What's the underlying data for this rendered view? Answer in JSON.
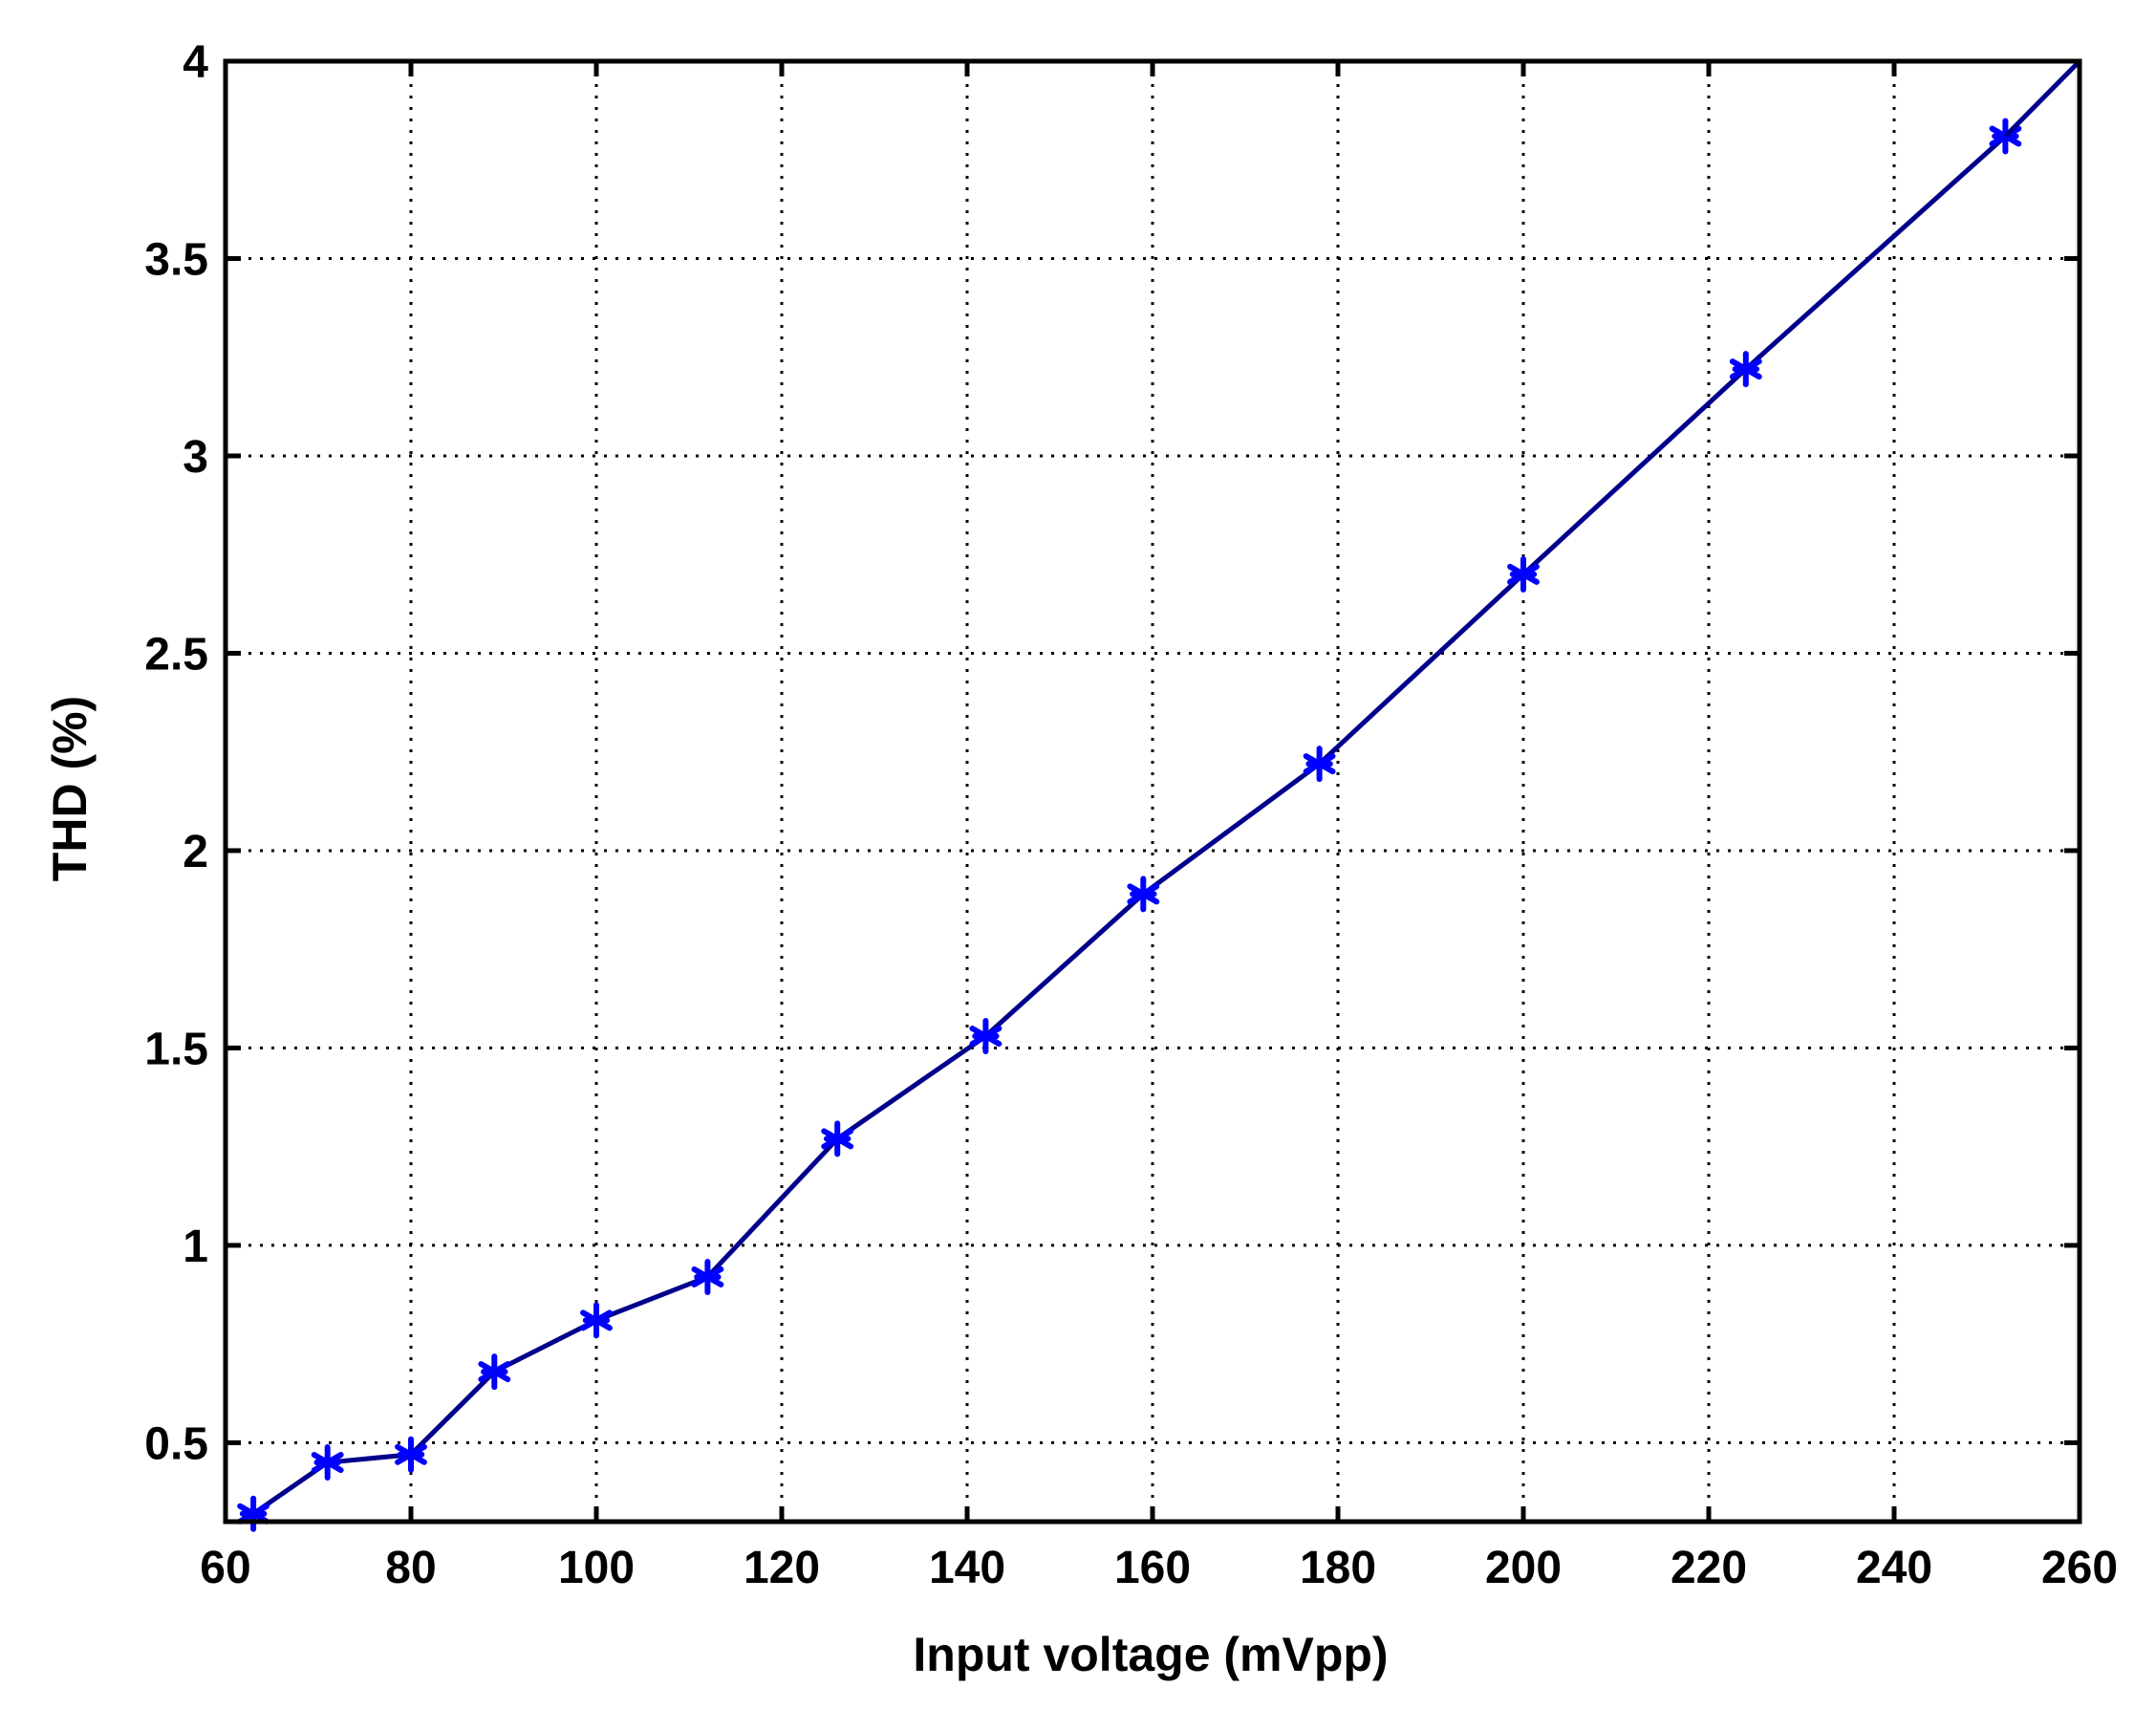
{
  "chart_data": {
    "type": "line",
    "title": "",
    "xlabel": "Input voltage (mVpp)",
    "ylabel": "THD (%)",
    "xlim": [
      60,
      260
    ],
    "ylim": [
      0.3,
      4
    ],
    "xticks": [
      60,
      80,
      100,
      120,
      140,
      160,
      180,
      200,
      220,
      240,
      260
    ],
    "yticks": [
      0.5,
      1,
      1.5,
      2,
      2.5,
      3,
      3.5,
      4
    ],
    "xtick_labels": [
      "60",
      "80",
      "100",
      "120",
      "140",
      "160",
      "180",
      "200",
      "220",
      "240",
      "260"
    ],
    "ytick_labels": [
      "0.5",
      "1",
      "1.5",
      "2",
      "2.5",
      "3",
      "3.5",
      "4"
    ],
    "grid": true,
    "series": [
      {
        "color": "#0000ff",
        "line_color": "#00008b",
        "marker": "asterisk",
        "x": [
          63,
          71,
          80,
          89,
          100,
          112,
          126,
          142,
          159,
          178,
          200,
          224,
          252
        ],
        "y": [
          0.32,
          0.45,
          0.47,
          0.68,
          0.81,
          0.92,
          1.27,
          1.53,
          1.89,
          2.22,
          2.7,
          3.22,
          3.81
        ]
      }
    ],
    "trend_line": {
      "x": [
        252,
        260
      ],
      "y": [
        3.81,
        4.0
      ]
    }
  }
}
